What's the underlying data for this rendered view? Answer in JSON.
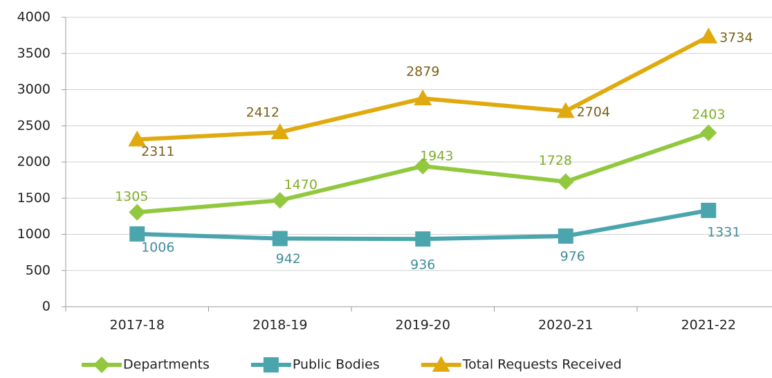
{
  "chart_data": {
    "type": "line",
    "categories": [
      "2017-18",
      "2018-19",
      "2019-20",
      "2020-21",
      "2021-22"
    ],
    "series": [
      {
        "name": "Departments",
        "color": "#92c83e",
        "label_color": "#7fae2a",
        "marker": "diamond",
        "values": [
          1305,
          1470,
          1943,
          1728,
          2403
        ]
      },
      {
        "name": "Public Bodies",
        "color": "#4ba5ad",
        "label_color": "#3d8e99",
        "marker": "square",
        "values": [
          1006,
          942,
          936,
          976,
          1331
        ]
      },
      {
        "name": "Total Requests Received",
        "color": "#e0aa0f",
        "label_color": "#7a6118",
        "marker": "triangle",
        "values": [
          2311,
          2412,
          2879,
          2704,
          3734
        ]
      }
    ],
    "ylim": [
      0,
      4000
    ],
    "yticks": [
      0,
      500,
      1000,
      1500,
      2000,
      2500,
      3000,
      3500,
      4000
    ],
    "grid": true,
    "legend": "bottom"
  }
}
